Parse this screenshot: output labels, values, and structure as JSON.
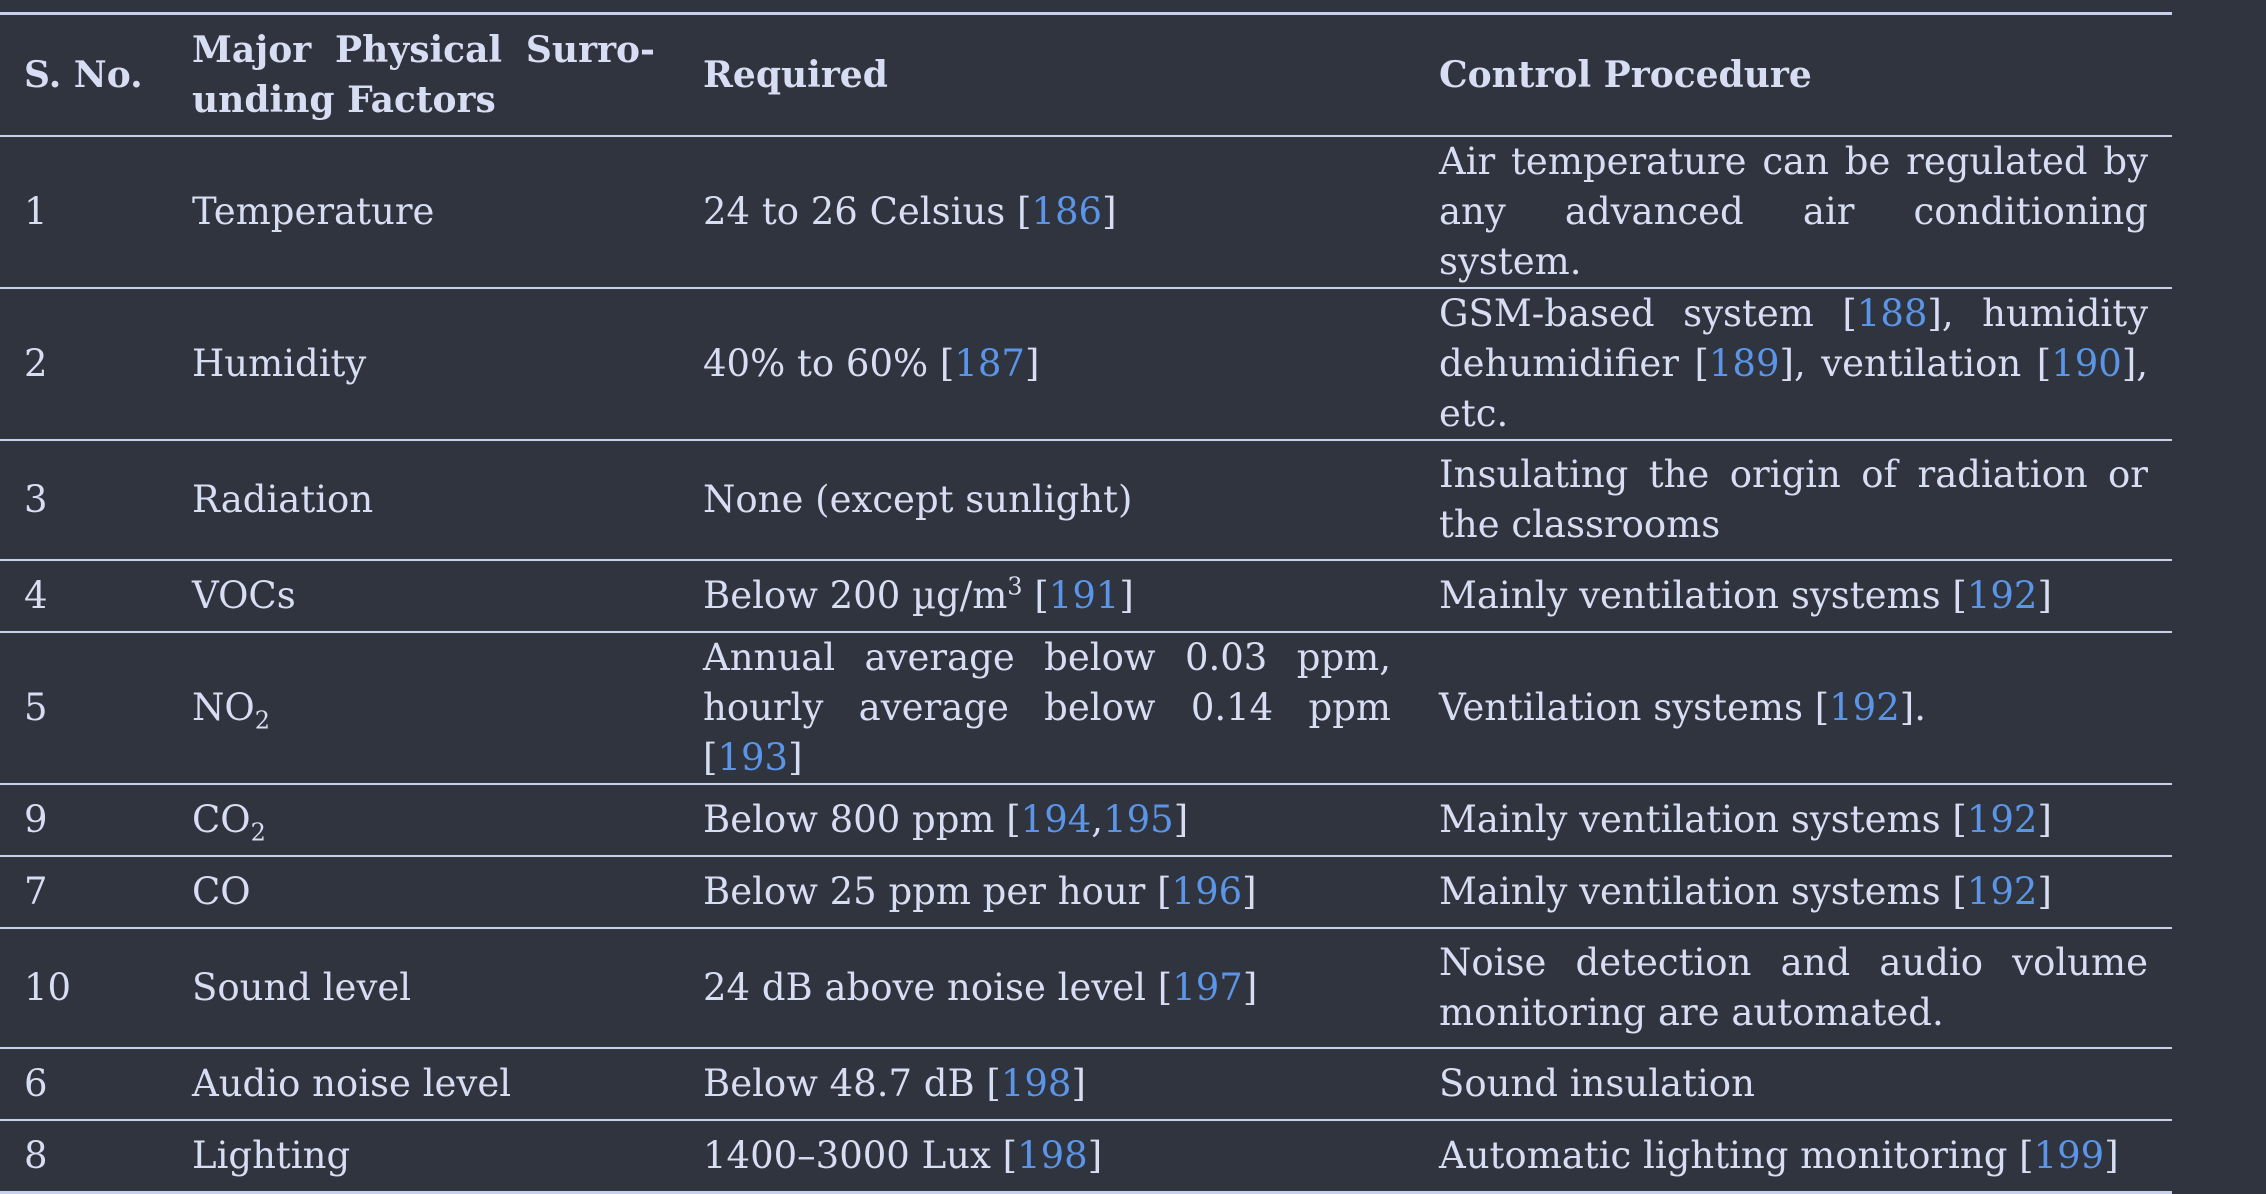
{
  "table": {
    "headers": {
      "sno": "S. No.",
      "factor": "Major Physical Surrounding Factors",
      "factor_line1": "Major Physical Surro-",
      "factor_line2": "unding Factors",
      "required": "Required",
      "control": "Control Procedure"
    },
    "rows": [
      {
        "sno": "1",
        "factor": "Temperature",
        "required": [
          {
            "t": "24 to 26 Celsius ["
          },
          {
            "ref": "186"
          },
          {
            "t": "]"
          }
        ],
        "control": [
          {
            "t": "Air temperature can be regulated by any advanced air conditioning system."
          }
        ]
      },
      {
        "sno": "2",
        "factor": "Humidity",
        "required": [
          {
            "t": "40% to 60% ["
          },
          {
            "ref": "187"
          },
          {
            "t": "]"
          }
        ],
        "control": [
          {
            "t": "GSM-based system ["
          },
          {
            "ref": "188"
          },
          {
            "t": "], humidity dehumidifier ["
          },
          {
            "ref": "189"
          },
          {
            "t": "], ventilation ["
          },
          {
            "ref": "190"
          },
          {
            "t": "], etc."
          }
        ]
      },
      {
        "sno": "3",
        "factor": "Radiation",
        "required": [
          {
            "t": "None (except sunlight)"
          }
        ],
        "control": [
          {
            "t": "Insulating the origin of radiation or the classrooms"
          }
        ]
      },
      {
        "sno": "4",
        "factor": "VOCs",
        "required": [
          {
            "t": "Below 200 µg/m"
          },
          {
            "sup": "3"
          },
          {
            "t": " ["
          },
          {
            "ref": "191"
          },
          {
            "t": "]"
          }
        ],
        "control": [
          {
            "t": "Mainly ventilation systems ["
          },
          {
            "ref": "192"
          },
          {
            "t": "]"
          }
        ]
      },
      {
        "sno": "5",
        "factor": "NO",
        "factor_sub": "2",
        "required": [
          {
            "t": "Annual average below 0.03 ppm, hourly average below 0.14 ppm ["
          },
          {
            "ref": "193"
          },
          {
            "t": "]"
          }
        ],
        "control": [
          {
            "t": "Ventilation systems ["
          },
          {
            "ref": "192"
          },
          {
            "t": "]."
          }
        ]
      },
      {
        "sno": "9",
        "factor": "CO",
        "factor_sub": "2",
        "required": [
          {
            "t": "Below 800 ppm ["
          },
          {
            "ref": "194"
          },
          {
            "t": ","
          },
          {
            "ref": "195"
          },
          {
            "t": "]"
          }
        ],
        "control": [
          {
            "t": "Mainly ventilation systems ["
          },
          {
            "ref": "192"
          },
          {
            "t": "]"
          }
        ]
      },
      {
        "sno": "7",
        "factor": "CO",
        "required": [
          {
            "t": "Below 25 ppm per hour ["
          },
          {
            "ref": "196"
          },
          {
            "t": "]"
          }
        ],
        "control": [
          {
            "t": "Mainly ventilation systems ["
          },
          {
            "ref": "192"
          },
          {
            "t": "]"
          }
        ]
      },
      {
        "sno": "10",
        "factor": "Sound level",
        "required": [
          {
            "t": "24 dB above noise level ["
          },
          {
            "ref": "197"
          },
          {
            "t": "]"
          }
        ],
        "control": [
          {
            "t": "Noise detection and audio volume monitoring are automated."
          }
        ]
      },
      {
        "sno": "6",
        "factor": "Audio noise level",
        "required": [
          {
            "t": "Below 48.7 dB ["
          },
          {
            "ref": "198"
          },
          {
            "t": "]"
          }
        ],
        "control": [
          {
            "t": "Sound insulation"
          }
        ]
      },
      {
        "sno": "8",
        "factor": "Lighting",
        "required": [
          {
            "t": "1400–3000 Lux ["
          },
          {
            "ref": "198"
          },
          {
            "t": "]"
          }
        ],
        "control": [
          {
            "t": "Automatic lighting monitoring ["
          },
          {
            "ref": "199"
          },
          {
            "t": "]"
          }
        ]
      }
    ]
  },
  "colors": {
    "background": "#30343f",
    "text": "#d7ddf2",
    "link": "#5a95e8",
    "rule": "#c9d0ee"
  }
}
